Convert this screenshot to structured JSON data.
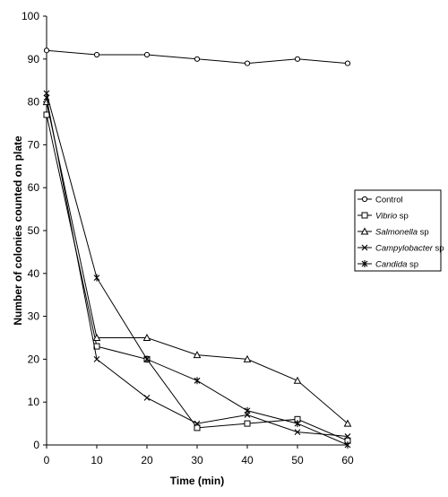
{
  "chart_data": {
    "type": "line",
    "xlabel": "Time (min)",
    "ylabel": "Number of colonies counted on plate",
    "x": [
      0,
      10,
      20,
      30,
      40,
      50,
      60
    ],
    "xlim": [
      0,
      60
    ],
    "ylim": [
      0,
      100
    ],
    "xticks": [
      0,
      10,
      20,
      30,
      40,
      50,
      60
    ],
    "yticks": [
      0,
      10,
      20,
      30,
      40,
      50,
      60,
      70,
      80,
      90,
      100
    ],
    "grid": false,
    "legend_position": "right",
    "series": [
      {
        "name": "Control",
        "marker": "circle",
        "italic_name": false,
        "values": [
          92,
          91,
          91,
          90,
          89,
          90,
          89
        ]
      },
      {
        "name": "Vibrio sp",
        "display_parts": [
          {
            "text": "Vibrio",
            "italic": true
          },
          {
            "text": " sp",
            "italic": false
          }
        ],
        "marker": "square",
        "values": [
          77,
          23,
          20,
          4,
          5,
          6,
          1
        ]
      },
      {
        "name": "Salmonella sp",
        "display_parts": [
          {
            "text": "Salmonella",
            "italic": true
          },
          {
            "text": " sp",
            "italic": false
          }
        ],
        "marker": "triangle",
        "values": [
          80,
          25,
          25,
          21,
          20,
          15,
          5
        ]
      },
      {
        "name": "Campylobacter sp",
        "display_parts": [
          {
            "text": "Campylobacter",
            "italic": true
          },
          {
            "text": " sp",
            "italic": false
          }
        ],
        "marker": "x",
        "values": [
          81,
          20,
          11,
          5,
          7,
          3,
          2
        ]
      },
      {
        "name": "Candida sp",
        "display_parts": [
          {
            "text": "Candida",
            "italic": true
          },
          {
            "text": " sp",
            "italic": false
          }
        ],
        "marker": "star",
        "values": [
          82,
          39,
          20,
          15,
          8,
          5,
          0
        ]
      }
    ]
  }
}
